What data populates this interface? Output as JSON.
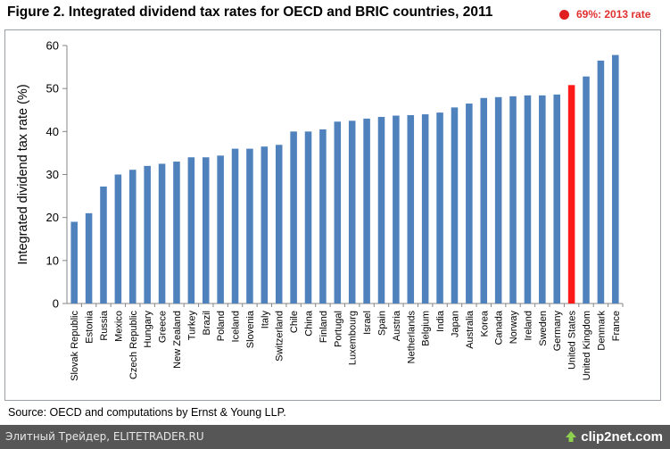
{
  "header": {
    "title": "Figure 2. Integrated dividend tax rates for OECD and BRIC countries, 2011",
    "annotation": "69%: 2013 rate"
  },
  "source": "Source:  OECD and computations by Ernst & Young LLP.",
  "footer": {
    "left_text": "Элитный Трейдер, ELITETRADER.RU",
    "logo_text": "clip2net.com"
  },
  "colors": {
    "bar": "#4f81bd",
    "highlight": "#ff1a1a",
    "annotation": "#e03030"
  },
  "chart_data": {
    "type": "bar",
    "ylabel": "Integrated dividend tax rate (%)",
    "xlabel": "",
    "ylim": [
      0,
      60
    ],
    "yticks": [
      0,
      10,
      20,
      30,
      40,
      50,
      60
    ],
    "grid": false,
    "categories": [
      "Slovak Republic",
      "Estonia",
      "Russia",
      "Mexico",
      "Czech Republic",
      "Hungary",
      "Greece",
      "New Zealand",
      "Turkey",
      "Brazil",
      "Poland",
      "Iceland",
      "Slovenia",
      "Italy",
      "Switzerland",
      "Chile",
      "China",
      "Finland",
      "Portugal",
      "Luxembourg",
      "Israel",
      "Spain",
      "Austria",
      "Netherlands",
      "Belgium",
      "India",
      "Japan",
      "Australia",
      "Korea",
      "Canada",
      "Norway",
      "Ireland",
      "Sweden",
      "Germany",
      "United States",
      "United Kingdom",
      "Denmark",
      "France"
    ],
    "values": [
      19,
      21,
      27.2,
      30,
      31.1,
      32,
      32.5,
      33,
      34,
      34,
      34.4,
      36,
      36,
      36.5,
      36.9,
      40,
      40,
      40.5,
      42.3,
      42.5,
      43,
      43.4,
      43.7,
      43.8,
      44,
      44.4,
      45.6,
      46.5,
      47.8,
      48,
      48.2,
      48.4,
      48.4,
      48.6,
      50.8,
      52.8,
      56.5,
      57.8
    ],
    "highlight_category": "United States"
  }
}
